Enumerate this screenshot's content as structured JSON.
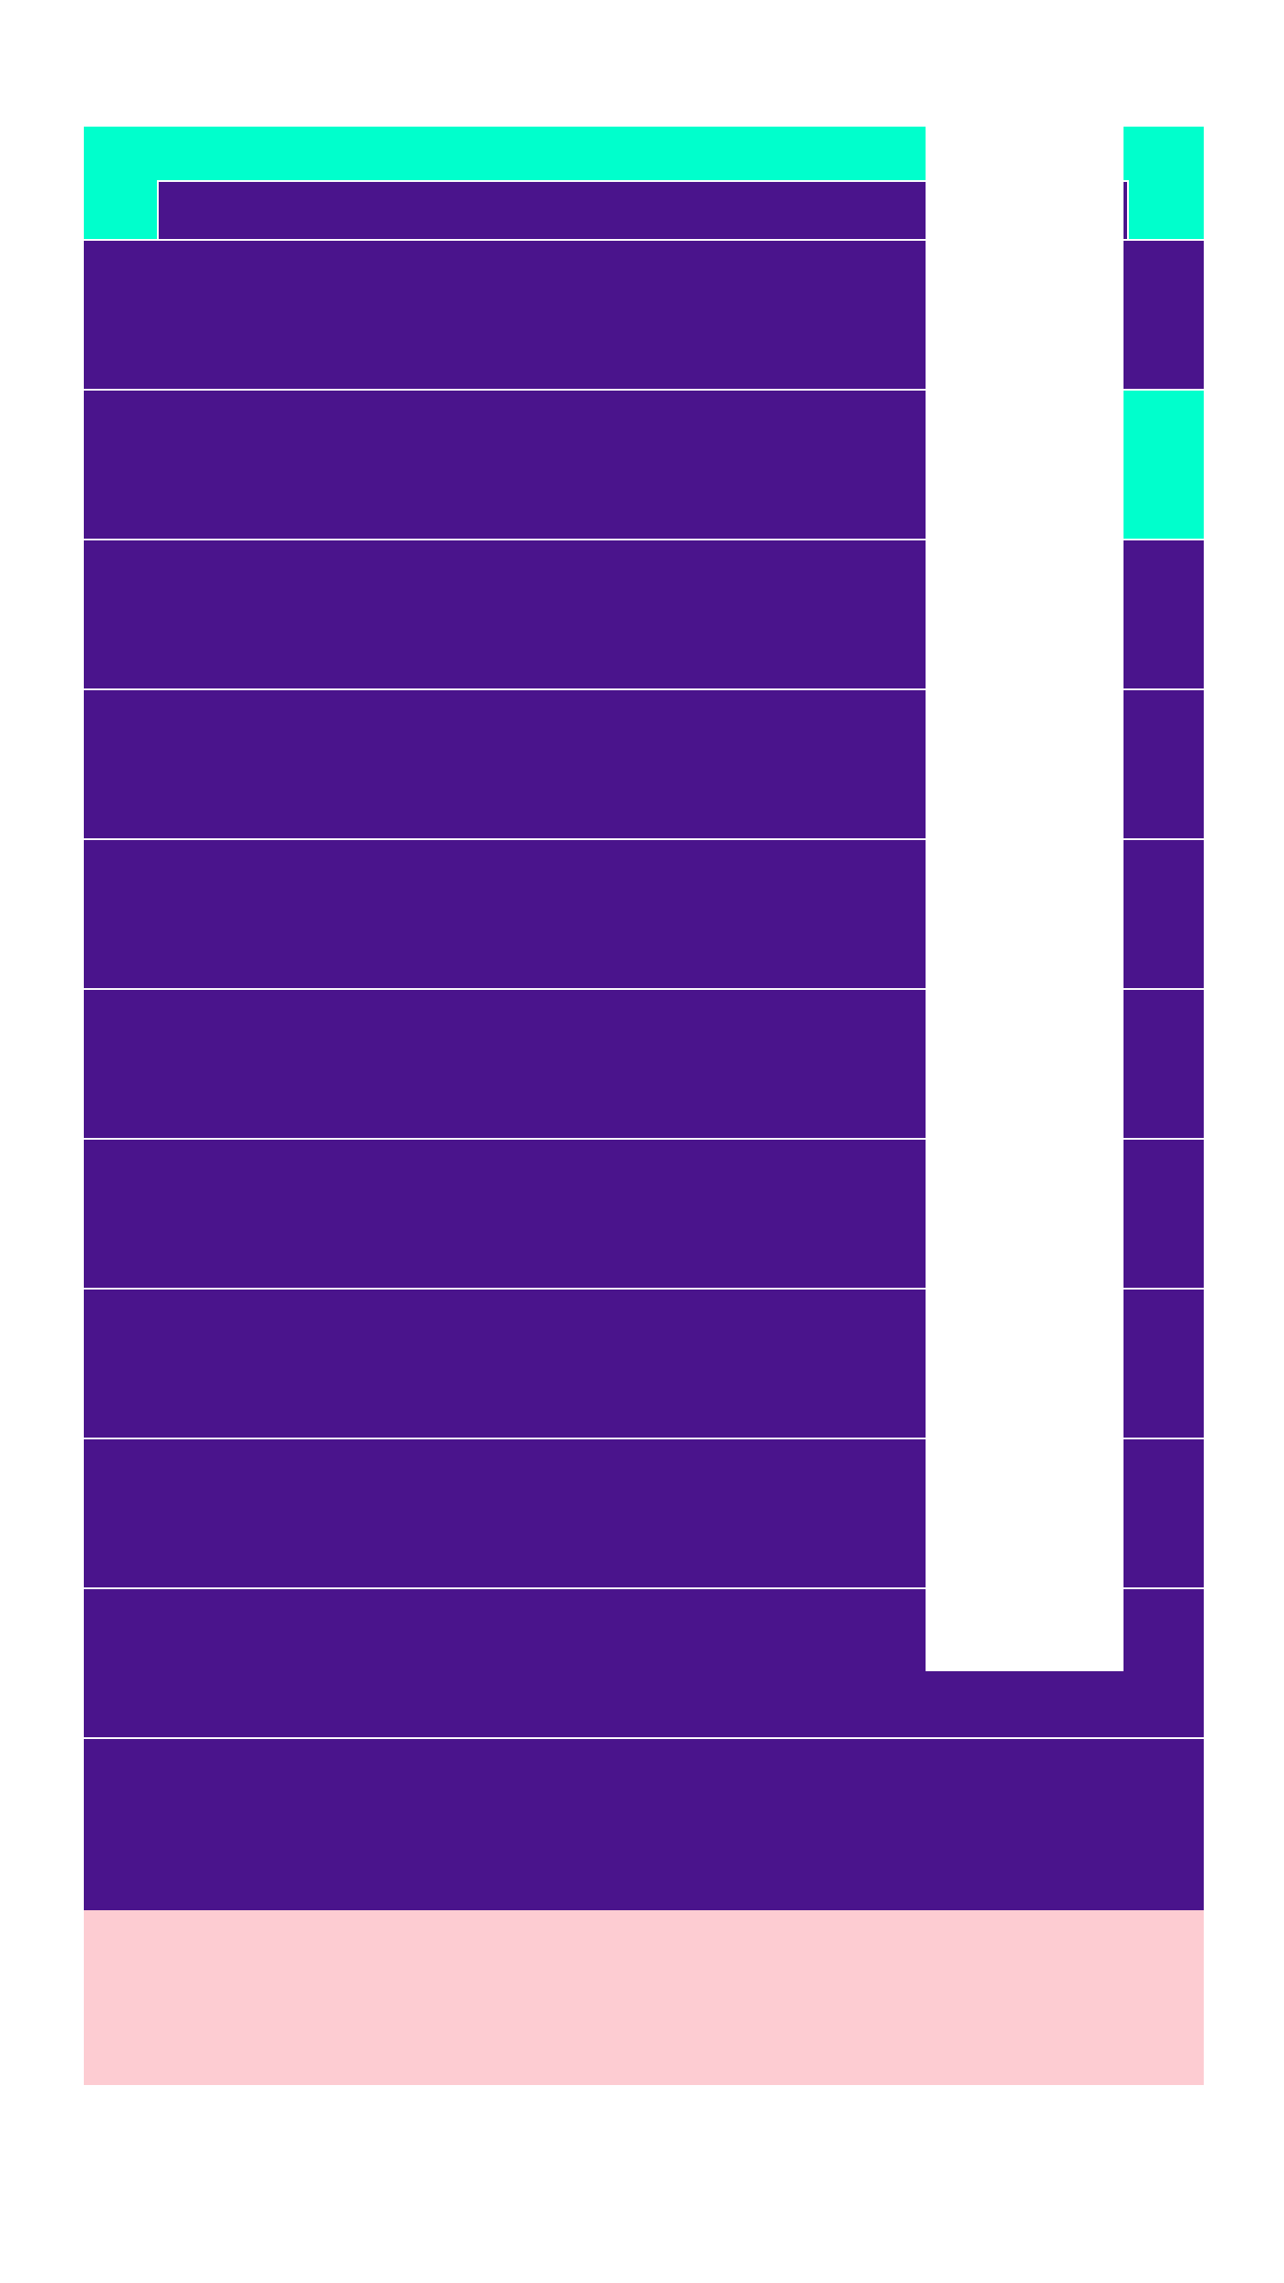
{
  "colors": {
    "primary": "#4A148C",
    "accent": "#00FFCC",
    "divider": "#FFFFFF",
    "footer": "#FDCCD2",
    "background": "#FFFFFF"
  },
  "header": {
    "title": "",
    "subtitle": ""
  },
  "rows": [
    {
      "label": "",
      "selected": false
    },
    {
      "label": "",
      "selected": true
    },
    {
      "label": "",
      "selected": false
    },
    {
      "label": "",
      "selected": false
    },
    {
      "label": "",
      "selected": false
    },
    {
      "label": "",
      "selected": false
    },
    {
      "label": "",
      "selected": false
    },
    {
      "label": "",
      "selected": false
    },
    {
      "label": "",
      "selected": false
    },
    {
      "label": "",
      "selected": false
    },
    {
      "label": "",
      "selected": false
    }
  ],
  "footer": {
    "text": ""
  }
}
